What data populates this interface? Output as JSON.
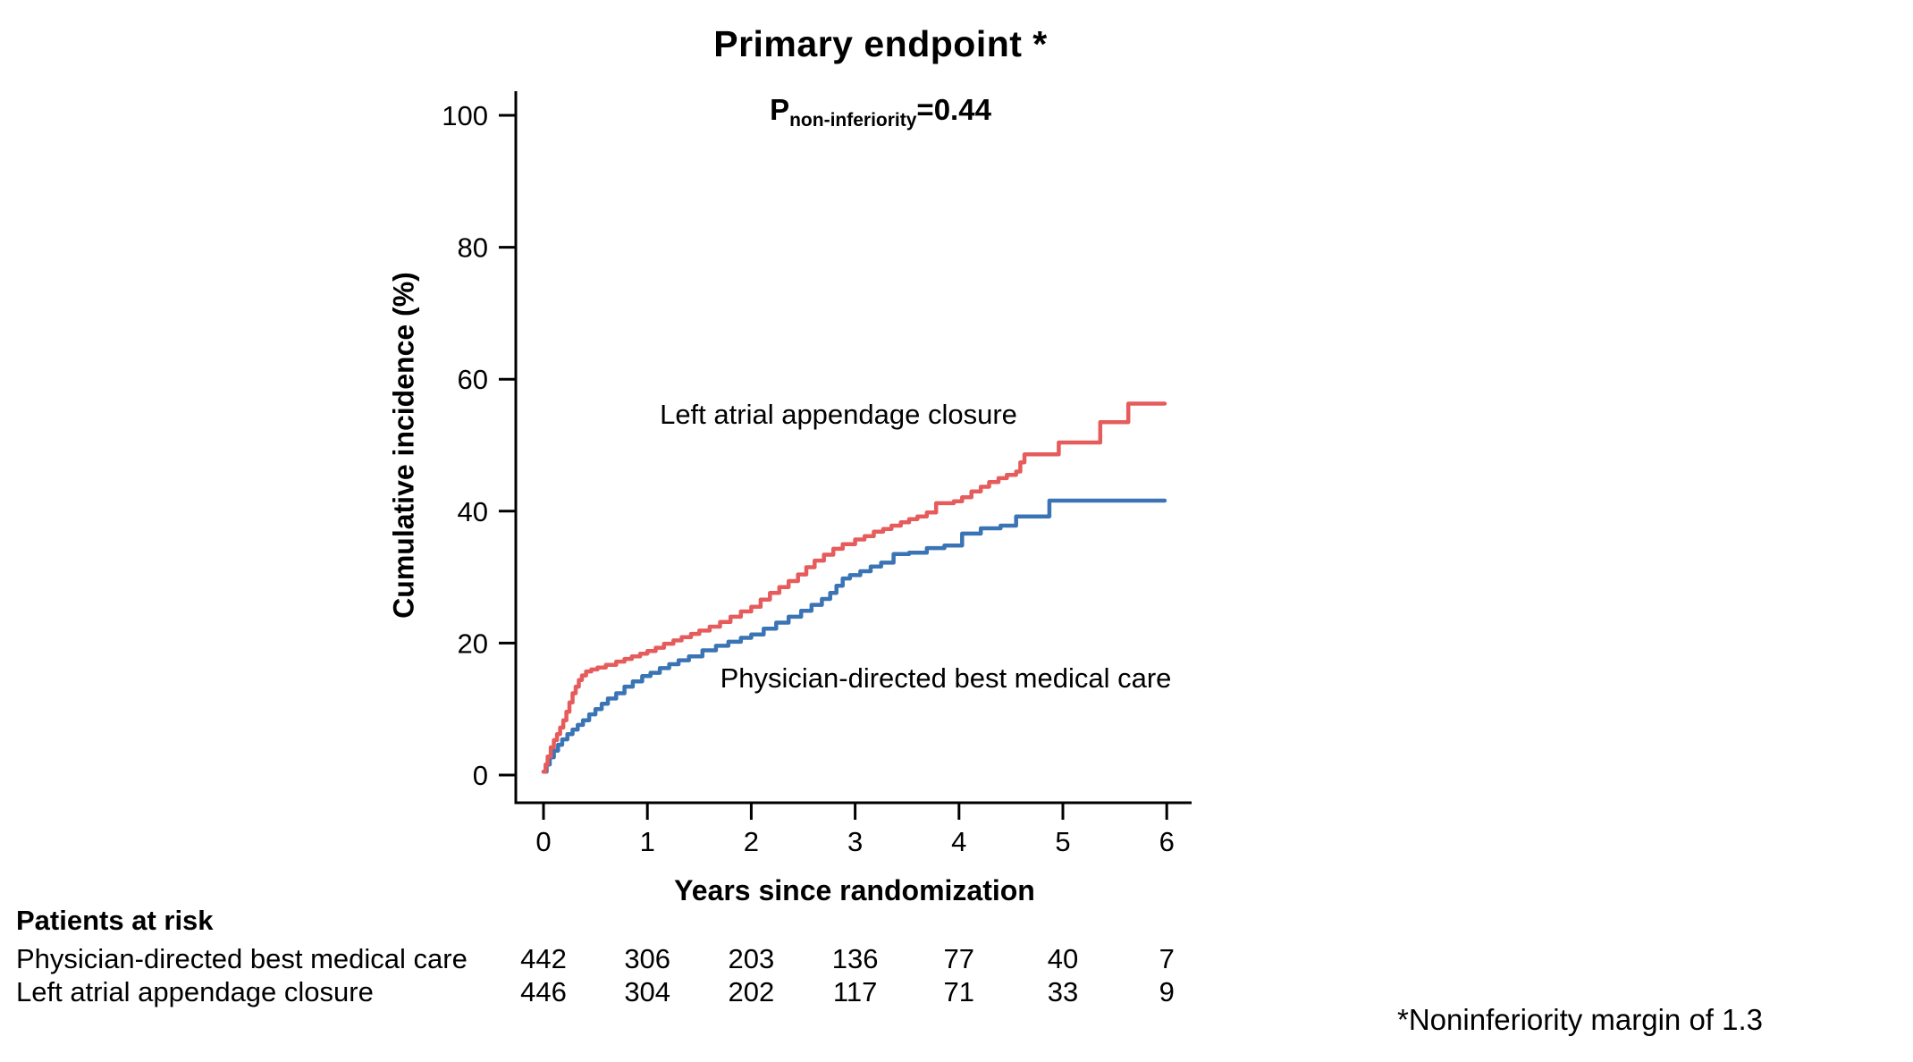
{
  "chart": {
    "p_annotation": {
      "prefix": "P",
      "subscript": "non-inferiority",
      "rest": "=0.44"
    }
  },
  "chart_data": {
    "type": "line",
    "step": true,
    "title": "Primary endpoint *",
    "xlabel": "Years since randomization",
    "ylabel": "Cumulative incidence (%)",
    "x_ticks": [
      0,
      1,
      2,
      3,
      4,
      5,
      6
    ],
    "y_ticks": [
      0,
      20,
      40,
      60,
      80,
      100
    ],
    "xlim": [
      0,
      6.25
    ],
    "ylim": [
      0,
      104
    ],
    "grid": false,
    "legend_position": "inline-curve-labels",
    "series": [
      {
        "name": "Left atrial appendage closure",
        "color": "#E65C5C",
        "points": [
          [
            0,
            0.5
          ],
          [
            0.02,
            1.6
          ],
          [
            0.04,
            2.8
          ],
          [
            0.07,
            4.2
          ],
          [
            0.1,
            5.3
          ],
          [
            0.13,
            6.2
          ],
          [
            0.16,
            7.2
          ],
          [
            0.19,
            8.3
          ],
          [
            0.22,
            9.6
          ],
          [
            0.25,
            11.0
          ],
          [
            0.28,
            12.4
          ],
          [
            0.31,
            13.4
          ],
          [
            0.34,
            14.4
          ],
          [
            0.37,
            15.1
          ],
          [
            0.41,
            15.7
          ],
          [
            0.46,
            16.0
          ],
          [
            0.52,
            16.3
          ],
          [
            0.6,
            16.7
          ],
          [
            0.7,
            17.2
          ],
          [
            0.78,
            17.6
          ],
          [
            0.85,
            18.0
          ],
          [
            0.93,
            18.4
          ],
          [
            1.0,
            18.8
          ],
          [
            1.08,
            19.3
          ],
          [
            1.16,
            19.9
          ],
          [
            1.25,
            20.4
          ],
          [
            1.33,
            20.9
          ],
          [
            1.42,
            21.4
          ],
          [
            1.5,
            21.9
          ],
          [
            1.6,
            22.5
          ],
          [
            1.7,
            23.2
          ],
          [
            1.8,
            24.0
          ],
          [
            1.9,
            24.8
          ],
          [
            2.0,
            25.5
          ],
          [
            2.09,
            26.6
          ],
          [
            2.18,
            27.6
          ],
          [
            2.27,
            28.5
          ],
          [
            2.36,
            29.4
          ],
          [
            2.45,
            30.4
          ],
          [
            2.53,
            31.5
          ],
          [
            2.61,
            32.5
          ],
          [
            2.7,
            33.4
          ],
          [
            2.79,
            34.3
          ],
          [
            2.88,
            35.0
          ],
          [
            3.0,
            35.7
          ],
          [
            3.09,
            36.2
          ],
          [
            3.18,
            36.9
          ],
          [
            3.27,
            37.3
          ],
          [
            3.35,
            37.8
          ],
          [
            3.44,
            38.3
          ],
          [
            3.52,
            38.8
          ],
          [
            3.6,
            39.2
          ],
          [
            3.69,
            39.8
          ],
          [
            3.78,
            41.2
          ],
          [
            3.95,
            41.5
          ],
          [
            4.03,
            42.1
          ],
          [
            4.12,
            43.0
          ],
          [
            4.21,
            43.7
          ],
          [
            4.29,
            44.4
          ],
          [
            4.38,
            45.0
          ],
          [
            4.46,
            45.5
          ],
          [
            4.55,
            46.0
          ],
          [
            4.59,
            47.4
          ],
          [
            4.63,
            48.6
          ],
          [
            4.96,
            50.4
          ],
          [
            5.36,
            53.5
          ],
          [
            5.63,
            56.3
          ],
          [
            5.98,
            56.3
          ]
        ]
      },
      {
        "name": "Physician-directed best medical care",
        "color": "#3B74B4",
        "points": [
          [
            0,
            0.5
          ],
          [
            0.03,
            1.6
          ],
          [
            0.06,
            2.7
          ],
          [
            0.1,
            3.7
          ],
          [
            0.14,
            4.6
          ],
          [
            0.18,
            5.4
          ],
          [
            0.23,
            6.2
          ],
          [
            0.28,
            6.9
          ],
          [
            0.33,
            7.6
          ],
          [
            0.38,
            8.3
          ],
          [
            0.44,
            9.2
          ],
          [
            0.5,
            10.0
          ],
          [
            0.56,
            10.8
          ],
          [
            0.62,
            11.6
          ],
          [
            0.7,
            12.4
          ],
          [
            0.78,
            13.4
          ],
          [
            0.86,
            14.2
          ],
          [
            0.95,
            15.0
          ],
          [
            1.03,
            15.5
          ],
          [
            1.12,
            16.2
          ],
          [
            1.21,
            16.8
          ],
          [
            1.3,
            17.4
          ],
          [
            1.4,
            18.0
          ],
          [
            1.53,
            18.9
          ],
          [
            1.66,
            19.6
          ],
          [
            1.78,
            20.2
          ],
          [
            1.9,
            20.8
          ],
          [
            2.0,
            21.3
          ],
          [
            2.12,
            22.2
          ],
          [
            2.24,
            23.1
          ],
          [
            2.36,
            24.0
          ],
          [
            2.48,
            24.9
          ],
          [
            2.58,
            25.8
          ],
          [
            2.68,
            26.7
          ],
          [
            2.76,
            27.6
          ],
          [
            2.82,
            28.7
          ],
          [
            2.88,
            29.8
          ],
          [
            2.95,
            30.3
          ],
          [
            3.05,
            30.9
          ],
          [
            3.15,
            31.6
          ],
          [
            3.25,
            32.2
          ],
          [
            3.37,
            33.5
          ],
          [
            3.52,
            33.7
          ],
          [
            3.69,
            34.4
          ],
          [
            3.86,
            34.8
          ],
          [
            4.03,
            36.6
          ],
          [
            4.21,
            37.4
          ],
          [
            4.4,
            37.8
          ],
          [
            4.55,
            39.2
          ],
          [
            4.87,
            41.6
          ],
          [
            5.98,
            41.6
          ]
        ]
      }
    ]
  },
  "risk_table": {
    "header": "Patients at risk",
    "rows": [
      {
        "label": "Physician-directed best medical care",
        "counts": [
          442,
          306,
          203,
          136,
          77,
          40,
          7
        ]
      },
      {
        "label": "Left atrial appendage closure",
        "counts": [
          446,
          304,
          202,
          117,
          71,
          33,
          9
        ]
      }
    ]
  },
  "footnote": "*Noninferiority margin of 1.3"
}
